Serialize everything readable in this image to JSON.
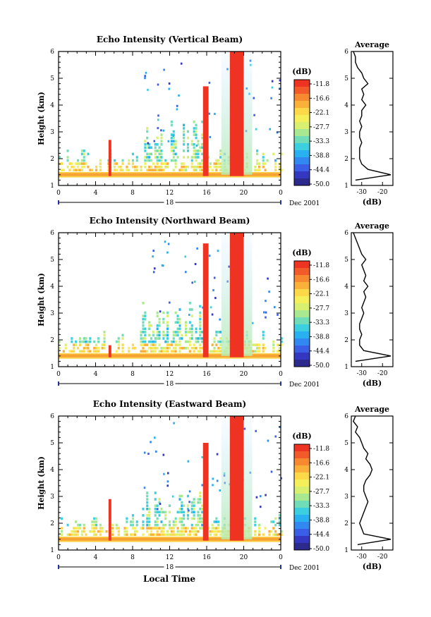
{
  "panels": [
    {
      "title": "Echo Intensity (Vertical Beam)",
      "ylabel": "Height (km)",
      "y_ticks": [
        "1",
        "2",
        "3",
        "4",
        "5",
        "6"
      ],
      "x_ticks": [
        "0",
        "4",
        "8",
        "12",
        "16",
        "20",
        "0"
      ],
      "day_label": "18",
      "month_label": "Dec 2001",
      "avg_title": "Average",
      "avg_xlabel": "(dB)",
      "avg_x_ticks": [
        "-30",
        "-20"
      ]
    },
    {
      "title": "Echo Intensity (Northward Beam)",
      "ylabel": "Height (km)",
      "y_ticks": [
        "1",
        "2",
        "3",
        "4",
        "5",
        "6"
      ],
      "x_ticks": [
        "0",
        "4",
        "8",
        "12",
        "16",
        "20",
        "0"
      ],
      "day_label": "18",
      "month_label": "Dec 2001",
      "avg_title": "Average",
      "avg_xlabel": "(dB)",
      "avg_x_ticks": [
        "-30",
        "-20"
      ]
    },
    {
      "title": "Echo Intensity (Eastward Beam)",
      "ylabel": "Height (km)",
      "y_ticks": [
        "1",
        "2",
        "3",
        "4",
        "5",
        "6"
      ],
      "x_ticks": [
        "0",
        "4",
        "8",
        "12",
        "16",
        "20",
        "0"
      ],
      "day_label": "18",
      "month_label": "Dec 2001",
      "avg_title": "Average",
      "avg_xlabel": "(dB)",
      "avg_x_ticks": [
        "-30",
        "-20"
      ]
    }
  ],
  "time_label": "Local Time",
  "colorbar": {
    "unit_label": "(dB)",
    "tick_labels": [
      "-11.8",
      "-16.6",
      "-22.1",
      "-27.7",
      "-33.3",
      "-38.8",
      "-44.4",
      "-50.0"
    ],
    "colors": [
      "#ee3322",
      "#f25a2a",
      "#f78a30",
      "#fbb03a",
      "#fdd848",
      "#f5f05a",
      "#d8ef70",
      "#a8e890",
      "#70dcb8",
      "#3ccfe0",
      "#29b0f0",
      "#3088f0",
      "#3a5ee6",
      "#3438c0",
      "#2c2a8c"
    ]
  },
  "chart_data": [
    {
      "type": "heatmap",
      "title": "Echo Intensity (Vertical Beam)",
      "xlabel": "",
      "ylabel": "Height (km)",
      "xlim": [
        0,
        24
      ],
      "ylim": [
        1,
        6
      ],
      "colorbar_label": "(dB)",
      "colorbar_range": [
        -50.0,
        -11.8
      ],
      "features": [
        {
          "kind": "surface_layer",
          "t_start": 0,
          "t_end": 24,
          "h_top": 1.5,
          "db": -16
        },
        {
          "kind": "cloud_column",
          "t_start": 5.4,
          "t_end": 5.7,
          "h_top": 2.7,
          "db": -11.8
        },
        {
          "kind": "cloud_column",
          "t_start": 15.6,
          "t_end": 16.2,
          "h_top": 4.7,
          "db": -11.8
        },
        {
          "kind": "cloud_column",
          "t_start": 18.5,
          "t_end": 20.0,
          "h_top": 6.0,
          "db": -11.8
        }
      ],
      "profile": {
        "title": "Average",
        "xlabel": "(dB)",
        "xlim": [
          -35,
          -15
        ],
        "height": [
          1.2,
          1.4,
          1.6,
          1.8,
          2.0,
          2.2,
          2.4,
          2.6,
          2.8,
          3.0,
          3.2,
          3.4,
          3.6,
          3.8,
          4.0,
          4.2,
          4.4,
          4.6,
          4.8,
          5.0,
          5.2,
          5.4,
          5.6,
          5.8,
          6.0
        ],
        "db": [
          -33,
          -16,
          -27,
          -30,
          -31,
          -31,
          -31,
          -30,
          -31,
          -31,
          -30,
          -31,
          -30,
          -30,
          -28,
          -30,
          -29,
          -30,
          -27,
          -29,
          -30,
          -32,
          -33,
          -33,
          -34
        ]
      }
    },
    {
      "type": "heatmap",
      "title": "Echo Intensity (Northward Beam)",
      "xlabel": "",
      "ylabel": "Height (km)",
      "xlim": [
        0,
        24
      ],
      "ylim": [
        1,
        6
      ],
      "colorbar_label": "(dB)",
      "colorbar_range": [
        -50.0,
        -11.8
      ],
      "features": [
        {
          "kind": "surface_layer",
          "t_start": 0,
          "t_end": 24,
          "h_top": 1.5,
          "db": -16
        },
        {
          "kind": "cloud_column",
          "t_start": 5.4,
          "t_end": 5.7,
          "h_top": 1.8,
          "db": -11.8
        },
        {
          "kind": "cloud_column",
          "t_start": 15.6,
          "t_end": 16.2,
          "h_top": 5.6,
          "db": -11.8
        },
        {
          "kind": "cloud_column",
          "t_start": 18.5,
          "t_end": 20.0,
          "h_top": 6.0,
          "db": -11.8
        }
      ],
      "profile": {
        "title": "Average",
        "xlabel": "(dB)",
        "xlim": [
          -35,
          -15
        ],
        "height": [
          1.2,
          1.4,
          1.6,
          1.8,
          2.0,
          2.2,
          2.4,
          2.6,
          2.8,
          3.0,
          3.2,
          3.4,
          3.6,
          3.8,
          4.0,
          4.2,
          4.4,
          4.6,
          4.8,
          5.0,
          5.2,
          5.4,
          5.6,
          5.8,
          6.0
        ],
        "db": [
          -33,
          -16,
          -29,
          -31,
          -31,
          -30,
          -31,
          -31,
          -30,
          -29,
          -30,
          -29,
          -28,
          -29,
          -27,
          -29,
          -28,
          -29,
          -30,
          -28,
          -30,
          -31,
          -32,
          -33,
          -34
        ]
      }
    },
    {
      "type": "heatmap",
      "title": "Echo Intensity (Eastward Beam)",
      "xlabel": "Local Time",
      "ylabel": "Height (km)",
      "xlim": [
        0,
        24
      ],
      "ylim": [
        1,
        6
      ],
      "colorbar_label": "(dB)",
      "colorbar_range": [
        -50.0,
        -11.8
      ],
      "features": [
        {
          "kind": "surface_layer",
          "t_start": 0,
          "t_end": 24,
          "h_top": 1.5,
          "db": -16
        },
        {
          "kind": "cloud_column",
          "t_start": 5.4,
          "t_end": 5.7,
          "h_top": 2.9,
          "db": -11.8
        },
        {
          "kind": "cloud_column",
          "t_start": 15.6,
          "t_end": 16.2,
          "h_top": 5.0,
          "db": -11.8
        },
        {
          "kind": "cloud_column",
          "t_start": 18.5,
          "t_end": 20.0,
          "h_top": 6.0,
          "db": -11.8
        }
      ],
      "profile": {
        "title": "Average",
        "xlabel": "(dB)",
        "xlim": [
          -35,
          -15
        ],
        "height": [
          1.2,
          1.4,
          1.6,
          1.8,
          2.0,
          2.2,
          2.4,
          2.6,
          2.8,
          3.0,
          3.2,
          3.4,
          3.6,
          3.8,
          4.0,
          4.2,
          4.4,
          4.6,
          4.8,
          5.0,
          5.2,
          5.4,
          5.6,
          5.8,
          6.0
        ],
        "db": [
          -32,
          -16,
          -29,
          -30,
          -31,
          -30,
          -29,
          -28,
          -27,
          -28,
          -29,
          -29,
          -28,
          -26,
          -25,
          -26,
          -28,
          -27,
          -29,
          -30,
          -31,
          -33,
          -32,
          -34,
          -33
        ]
      }
    }
  ]
}
